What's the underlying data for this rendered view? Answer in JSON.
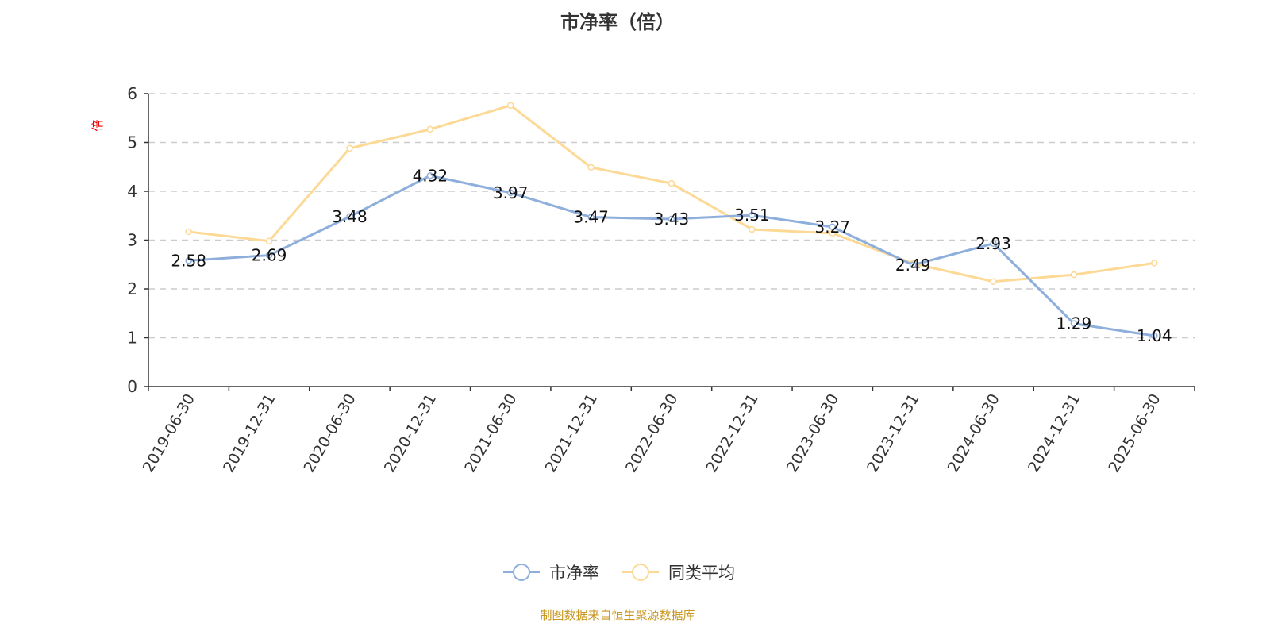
{
  "chart_data": {
    "type": "line",
    "title": "市净率（倍）",
    "ylabel": "倍",
    "ylim": [
      0,
      6
    ],
    "yticks": [
      0,
      1,
      2,
      3,
      4,
      5,
      6
    ],
    "grid": true,
    "legend_position": "bottom",
    "categories": [
      "2019-06-30",
      "2019-12-31",
      "2020-06-30",
      "2020-12-31",
      "2021-06-30",
      "2021-12-31",
      "2022-06-30",
      "2022-12-31",
      "2023-06-30",
      "2023-12-31",
      "2024-06-30",
      "2024-12-31",
      "2025-06-30"
    ],
    "series": [
      {
        "name": "市净率",
        "color": "#8eaedb",
        "labels": true,
        "values": [
          2.58,
          2.69,
          3.48,
          4.32,
          3.97,
          3.47,
          3.43,
          3.51,
          3.27,
          2.49,
          2.93,
          1.29,
          1.04
        ]
      },
      {
        "name": "同类平均",
        "color": "#fdd996",
        "labels": false,
        "values": [
          3.17,
          2.98,
          4.88,
          5.27,
          5.76,
          4.49,
          4.16,
          3.22,
          3.14,
          2.52,
          2.15,
          2.29,
          2.53
        ]
      }
    ]
  },
  "footer": "制图数据来自恒生聚源数据库"
}
